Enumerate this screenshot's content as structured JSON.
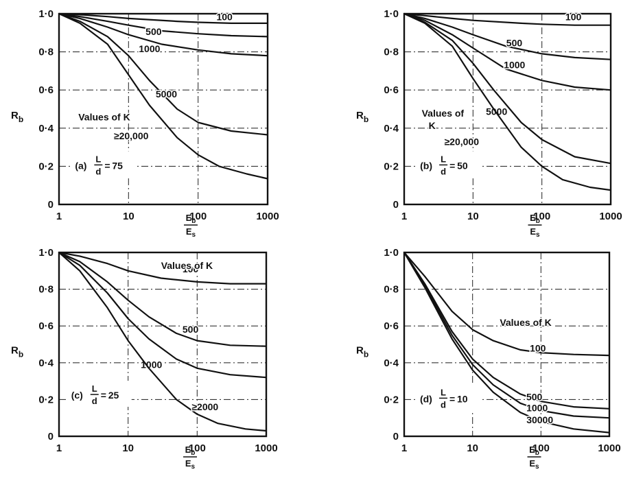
{
  "chart_data": [
    {
      "type": "line",
      "panel_label": "(a)",
      "ratio": "75",
      "xscale": "log",
      "xlim": [
        1,
        1000
      ],
      "ylim": [
        0,
        1
      ],
      "xticks": [
        "1",
        "10",
        "100",
        "1000"
      ],
      "yticks": [
        "0",
        "0·2",
        "0·4",
        "0·6",
        "0·8",
        "1·0"
      ],
      "ylabel": "R",
      "ylabel_sub": "b",
      "xlabel_num": "E",
      "xlabel_num_sub": "b",
      "xlabel_den": "E",
      "xlabel_den_sub": "s",
      "legend_title": "Values of K",
      "grid": true,
      "series": [
        {
          "name": "100",
          "x": [
            1,
            2,
            5,
            10,
            50,
            100,
            300,
            1000
          ],
          "y": [
            1.0,
            0.995,
            0.985,
            0.975,
            0.96,
            0.955,
            0.95,
            0.95
          ]
        },
        {
          "name": "500",
          "x": [
            1,
            2,
            5,
            10,
            30,
            100,
            300,
            1000
          ],
          "y": [
            1.0,
            0.985,
            0.96,
            0.94,
            0.91,
            0.895,
            0.885,
            0.88
          ]
        },
        {
          "name": "1000",
          "x": [
            1,
            2,
            5,
            10,
            30,
            100,
            300,
            1000
          ],
          "y": [
            1.0,
            0.975,
            0.93,
            0.89,
            0.84,
            0.81,
            0.79,
            0.78
          ]
        },
        {
          "name": "5000",
          "x": [
            1,
            2,
            5,
            10,
            20,
            50,
            100,
            300,
            1000
          ],
          "y": [
            1.0,
            0.96,
            0.88,
            0.78,
            0.65,
            0.5,
            0.43,
            0.385,
            0.365
          ]
        },
        {
          "name": "≥20,000",
          "x": [
            1,
            2,
            5,
            10,
            20,
            50,
            100,
            200,
            500,
            1000
          ],
          "y": [
            1.0,
            0.95,
            0.84,
            0.68,
            0.52,
            0.35,
            0.26,
            0.2,
            0.16,
            0.135
          ]
        }
      ]
    },
    {
      "type": "line",
      "panel_label": "(b)",
      "ratio": "50",
      "xscale": "log",
      "xlim": [
        1,
        1000
      ],
      "ylim": [
        0,
        1
      ],
      "xticks": [
        "1",
        "10",
        "100",
        "1000"
      ],
      "yticks": [
        "0",
        "0·2",
        "0·4",
        "0·6",
        "0·8",
        "1·0"
      ],
      "ylabel": "R",
      "ylabel_sub": "b",
      "xlabel_num": "E",
      "xlabel_num_sub": "b",
      "xlabel_den": "E",
      "xlabel_den_sub": "s",
      "legend_title": "Values of",
      "legend_title_2": "K",
      "grid": true,
      "series": [
        {
          "name": "100",
          "x": [
            1,
            2,
            5,
            10,
            50,
            100,
            300,
            1000
          ],
          "y": [
            1.0,
            0.99,
            0.975,
            0.965,
            0.95,
            0.945,
            0.94,
            0.94
          ]
        },
        {
          "name": "500",
          "x": [
            1,
            2,
            5,
            10,
            30,
            100,
            300,
            1000
          ],
          "y": [
            1.0,
            0.975,
            0.93,
            0.89,
            0.83,
            0.79,
            0.77,
            0.76
          ]
        },
        {
          "name": "1000",
          "x": [
            1,
            2,
            5,
            10,
            30,
            100,
            300,
            1000
          ],
          "y": [
            1.0,
            0.965,
            0.89,
            0.82,
            0.71,
            0.65,
            0.615,
            0.6
          ]
        },
        {
          "name": "5000",
          "x": [
            1,
            2,
            5,
            10,
            20,
            50,
            100,
            300,
            1000
          ],
          "y": [
            1.0,
            0.955,
            0.86,
            0.74,
            0.6,
            0.43,
            0.34,
            0.25,
            0.215
          ]
        },
        {
          "name": "≥20,000",
          "x": [
            1,
            2,
            5,
            10,
            20,
            50,
            100,
            200,
            500,
            1000
          ],
          "y": [
            1.0,
            0.95,
            0.83,
            0.66,
            0.5,
            0.3,
            0.2,
            0.13,
            0.09,
            0.075
          ]
        }
      ]
    },
    {
      "type": "line",
      "panel_label": "(c)",
      "ratio": "25",
      "xscale": "log",
      "xlim": [
        1,
        1000
      ],
      "ylim": [
        0,
        1
      ],
      "xticks": [
        "1",
        "10",
        "100",
        "1000"
      ],
      "yticks": [
        "0",
        "0·2",
        "0·4",
        "0·6",
        "0·8",
        "1·0"
      ],
      "ylabel": "R",
      "ylabel_sub": "b",
      "xlabel_num": "E",
      "xlabel_num_sub": "b",
      "xlabel_den": "E",
      "xlabel_den_sub": "s",
      "legend_title": "Values of K",
      "grid": true,
      "series": [
        {
          "name": "100",
          "x": [
            1,
            2,
            5,
            10,
            30,
            100,
            300,
            1000
          ],
          "y": [
            1.0,
            0.98,
            0.94,
            0.9,
            0.86,
            0.84,
            0.83,
            0.83
          ]
        },
        {
          "name": "500",
          "x": [
            1,
            2,
            5,
            10,
            20,
            50,
            100,
            300,
            1000
          ],
          "y": [
            1.0,
            0.95,
            0.84,
            0.74,
            0.65,
            0.56,
            0.52,
            0.495,
            0.49
          ]
        },
        {
          "name": "1000",
          "x": [
            1,
            2,
            5,
            10,
            20,
            50,
            100,
            300,
            1000
          ],
          "y": [
            1.0,
            0.93,
            0.78,
            0.64,
            0.53,
            0.42,
            0.37,
            0.335,
            0.32
          ]
        },
        {
          "name": "≥2000",
          "x": [
            1,
            2,
            5,
            10,
            20,
            50,
            100,
            200,
            500,
            1000
          ],
          "y": [
            1.0,
            0.9,
            0.7,
            0.52,
            0.37,
            0.2,
            0.12,
            0.07,
            0.04,
            0.03
          ]
        }
      ]
    },
    {
      "type": "line",
      "panel_label": "(d)",
      "ratio": "10",
      "xscale": "log",
      "xlim": [
        1,
        1000
      ],
      "ylim": [
        0,
        1
      ],
      "xticks": [
        "1",
        "10",
        "100",
        "1000"
      ],
      "yticks": [
        "0",
        "0·2",
        "0·4",
        "0·6",
        "0·8",
        "1·0"
      ],
      "ylabel": "R",
      "ylabel_sub": "b",
      "xlabel_num": "E",
      "xlabel_num_sub": "b",
      "xlabel_den": "E",
      "xlabel_den_sub": "s",
      "legend_title": "Values of K",
      "grid": true,
      "series": [
        {
          "name": "100",
          "x": [
            1,
            2,
            5,
            10,
            20,
            50,
            100,
            300,
            1000
          ],
          "y": [
            1.0,
            0.87,
            0.68,
            0.58,
            0.52,
            0.47,
            0.455,
            0.445,
            0.44
          ]
        },
        {
          "name": "500",
          "x": [
            1,
            2,
            5,
            10,
            20,
            50,
            100,
            300,
            1000
          ],
          "y": [
            1.0,
            0.83,
            0.57,
            0.42,
            0.32,
            0.23,
            0.19,
            0.16,
            0.15
          ]
        },
        {
          "name": "1000",
          "x": [
            1,
            2,
            5,
            10,
            20,
            50,
            100,
            300,
            1000
          ],
          "y": [
            1.0,
            0.82,
            0.55,
            0.39,
            0.28,
            0.18,
            0.14,
            0.11,
            0.1
          ]
        },
        {
          "name": "30000",
          "x": [
            1,
            2,
            5,
            10,
            20,
            50,
            100,
            300,
            1000
          ],
          "y": [
            1.0,
            0.81,
            0.53,
            0.36,
            0.24,
            0.13,
            0.08,
            0.04,
            0.02
          ]
        }
      ]
    }
  ]
}
